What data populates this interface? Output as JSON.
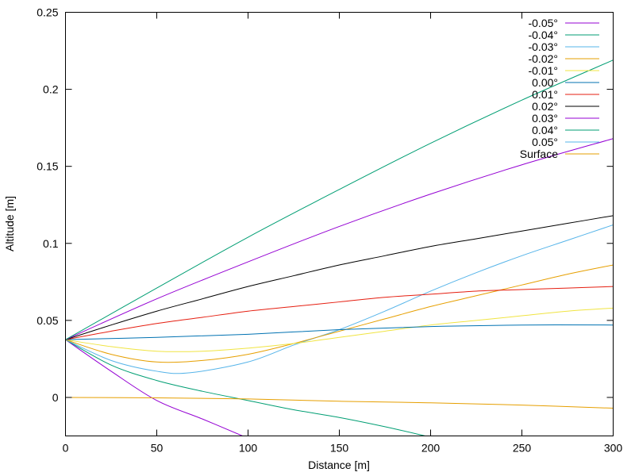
{
  "chart_data": {
    "type": "line",
    "title": "",
    "xlabel": "Distance [m]",
    "ylabel": "Altitude [m]",
    "xlim": [
      0,
      300
    ],
    "ylim": [
      -0.025,
      0.25
    ],
    "x_ticks": [
      0,
      50,
      100,
      150,
      200,
      250,
      300
    ],
    "y_ticks": [
      0,
      0.05,
      0.1,
      0.15,
      0.2,
      0.25
    ],
    "x_tick_labels": [
      "0",
      "50",
      "100",
      "150",
      "200",
      "250",
      "300"
    ],
    "y_tick_labels": [
      "0",
      "0.05",
      "0.1",
      "0.15",
      "0.2",
      "0.25"
    ],
    "grid": false,
    "legend_position": "top-right",
    "series": [
      {
        "name": "-0.05°",
        "color": "#9400d3",
        "points": [
          [
            0,
            0.0375
          ],
          [
            25,
            0.017
          ],
          [
            50,
            -0.002
          ],
          [
            75,
            -0.014
          ],
          [
            97,
            -0.025
          ]
        ]
      },
      {
        "name": "-0.04°",
        "color": "#009e73",
        "points": [
          [
            0,
            0.0375
          ],
          [
            25,
            0.021
          ],
          [
            50,
            0.011
          ],
          [
            75,
            0.004
          ],
          [
            100,
            -0.002
          ],
          [
            125,
            -0.008
          ],
          [
            150,
            -0.013
          ],
          [
            175,
            -0.019
          ],
          [
            197,
            -0.025
          ]
        ]
      },
      {
        "name": "-0.03°",
        "color": "#56b4e9",
        "points": [
          [
            0,
            0.0375
          ],
          [
            25,
            0.024
          ],
          [
            50,
            0.017
          ],
          [
            68,
            0.016
          ],
          [
            100,
            0.023
          ],
          [
            125,
            0.034
          ],
          [
            150,
            0.044
          ],
          [
            175,
            0.056
          ],
          [
            200,
            0.069
          ],
          [
            225,
            0.081
          ],
          [
            250,
            0.092
          ],
          [
            275,
            0.102
          ],
          [
            300,
            0.112
          ]
        ]
      },
      {
        "name": "-0.02°",
        "color": "#e69f00",
        "points": [
          [
            0,
            0.0375
          ],
          [
            25,
            0.028
          ],
          [
            50,
            0.023
          ],
          [
            75,
            0.024
          ],
          [
            100,
            0.028
          ],
          [
            125,
            0.035
          ],
          [
            150,
            0.043
          ],
          [
            175,
            0.051
          ],
          [
            200,
            0.059
          ],
          [
            225,
            0.066
          ],
          [
            250,
            0.073
          ],
          [
            275,
            0.08
          ],
          [
            300,
            0.086
          ]
        ]
      },
      {
        "name": "-0.01°",
        "color": "#f0e442",
        "points": [
          [
            0,
            0.0375
          ],
          [
            25,
            0.033
          ],
          [
            50,
            0.03
          ],
          [
            75,
            0.03
          ],
          [
            100,
            0.032
          ],
          [
            125,
            0.035
          ],
          [
            150,
            0.039
          ],
          [
            175,
            0.043
          ],
          [
            200,
            0.047
          ],
          [
            225,
            0.05
          ],
          [
            250,
            0.053
          ],
          [
            275,
            0.056
          ],
          [
            300,
            0.058
          ]
        ]
      },
      {
        "name": "0.00°",
        "color": "#0072b2",
        "points": [
          [
            0,
            0.0375
          ],
          [
            50,
            0.039
          ],
          [
            100,
            0.041
          ],
          [
            150,
            0.044
          ],
          [
            200,
            0.046
          ],
          [
            250,
            0.047
          ],
          [
            300,
            0.047
          ]
        ]
      },
      {
        "name": "0.01°",
        "color": "#e51e10",
        "points": [
          [
            0,
            0.0375
          ],
          [
            25,
            0.043
          ],
          [
            50,
            0.048
          ],
          [
            75,
            0.052
          ],
          [
            100,
            0.056
          ],
          [
            125,
            0.059
          ],
          [
            150,
            0.062
          ],
          [
            175,
            0.065
          ],
          [
            200,
            0.067
          ],
          [
            225,
            0.069
          ],
          [
            250,
            0.07
          ],
          [
            275,
            0.071
          ],
          [
            300,
            0.072
          ]
        ]
      },
      {
        "name": "0.02°",
        "color": "#000000",
        "points": [
          [
            0,
            0.0375
          ],
          [
            25,
            0.047
          ],
          [
            50,
            0.056
          ],
          [
            75,
            0.064
          ],
          [
            100,
            0.072
          ],
          [
            125,
            0.079
          ],
          [
            150,
            0.086
          ],
          [
            175,
            0.092
          ],
          [
            200,
            0.098
          ],
          [
            225,
            0.103
          ],
          [
            250,
            0.108
          ],
          [
            275,
            0.113
          ],
          [
            300,
            0.118
          ]
        ]
      },
      {
        "name": "0.03°",
        "color": "#9400d3",
        "points": [
          [
            0,
            0.0375
          ],
          [
            50,
            0.064
          ],
          [
            100,
            0.088
          ],
          [
            150,
            0.111
          ],
          [
            200,
            0.132
          ],
          [
            250,
            0.151
          ],
          [
            300,
            0.168
          ]
        ]
      },
      {
        "name": "0.04°",
        "color": "#009e73",
        "points": [
          [
            0,
            0.0375
          ],
          [
            50,
            0.071
          ],
          [
            100,
            0.104
          ],
          [
            150,
            0.135
          ],
          [
            200,
            0.165
          ],
          [
            250,
            0.193
          ],
          [
            300,
            0.219
          ]
        ]
      },
      {
        "name": "0.05°",
        "color": "#56b4e9",
        "points": []
      },
      {
        "name": "Surface",
        "color": "#e69f00",
        "points": [
          [
            0,
            0.0
          ],
          [
            50,
            -0.0003
          ],
          [
            100,
            -0.001
          ],
          [
            150,
            -0.0025
          ],
          [
            200,
            -0.0035
          ],
          [
            250,
            -0.005
          ],
          [
            300,
            -0.007
          ]
        ]
      }
    ]
  }
}
